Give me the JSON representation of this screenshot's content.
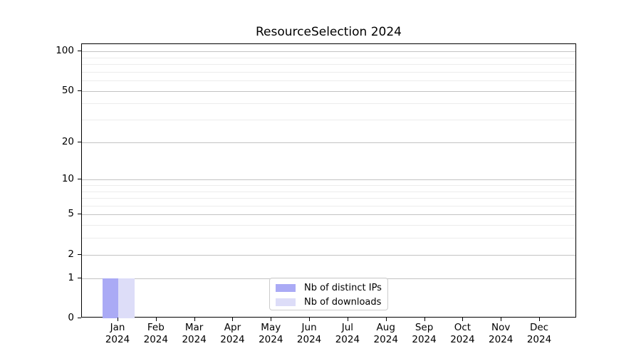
{
  "chart_data": {
    "type": "bar",
    "title": "ResourceSelection 2024",
    "scale": "log1p",
    "categories": [
      "Jan",
      "Feb",
      "Mar",
      "Apr",
      "May",
      "Jun",
      "Jul",
      "Aug",
      "Sep",
      "Oct",
      "Nov",
      "Dec"
    ],
    "x_tick_year": "2024",
    "series": [
      {
        "name": "Nb of distinct IPs",
        "color": "#aaaaf5",
        "values": [
          1,
          0,
          0,
          0,
          0,
          0,
          0,
          0,
          0,
          0,
          0,
          0
        ]
      },
      {
        "name": "Nb of downloads",
        "color": "#ddddf8",
        "values": [
          1,
          0,
          0,
          0,
          0,
          0,
          0,
          0,
          0,
          0,
          0,
          0
        ]
      }
    ],
    "y_major_ticks": [
      0,
      1,
      2,
      5,
      10,
      20,
      50,
      100
    ],
    "y_minor_gridlines": [
      3,
      4,
      6,
      7,
      8,
      9,
      30,
      40,
      60,
      70,
      80,
      90
    ],
    "ylim": [
      0,
      113
    ],
    "grid": true,
    "legend_position": "lower center"
  },
  "colors": {
    "axis": "#000000",
    "grid_major": "#c3c3c3",
    "grid_minor": "#ececec",
    "legend_border": "#cccccc",
    "text": "#000000"
  }
}
